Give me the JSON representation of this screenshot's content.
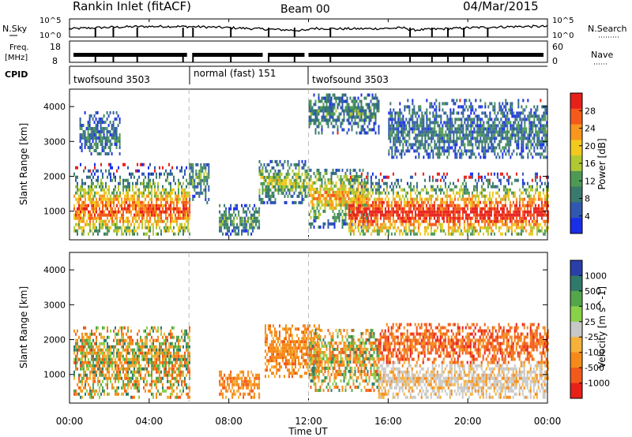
{
  "header": {
    "station": "Rankin Inlet (fitACF)",
    "beam": "Beam 00",
    "date": "04/Mar/2015"
  },
  "panels": {
    "nsky": {
      "label": "N.Sky",
      "right_label": "N.Search",
      "left_ticks": [
        "10^5",
        "10^0"
      ],
      "right_ticks": [
        "10^5",
        "10^0"
      ]
    },
    "freq": {
      "label_top": "Freq.",
      "label_unit": "[MHz]",
      "left_ticks": [
        "18",
        "8"
      ],
      "right_ticks": [
        "60",
        "0"
      ],
      "right_label": "Nave"
    },
    "cpid": {
      "label": "CPID",
      "segments": [
        "twofsound 3503",
        "normal (fast) 151",
        "twofsound 3503"
      ]
    },
    "power": {
      "ylabel": "Slant Range [km]",
      "colorbar_label": "Power [dB]",
      "colorbar_ticks": [
        "28",
        "24",
        "20",
        "16",
        "12",
        "8",
        "4"
      ],
      "colorbar_colors": [
        "#e8201a",
        "#f55a1a",
        "#f8961e",
        "#f2c91e",
        "#b2c832",
        "#4e9a55",
        "#3a7a6c",
        "#3058b0",
        "#1a2ee8"
      ]
    },
    "velocity": {
      "ylabel": "Slant Range [km]",
      "colorbar_label": "Velocity [m s^-1]",
      "colorbar_ticks": [
        "1000",
        "500",
        "100",
        "25",
        "-25",
        "-100",
        "-500",
        "-1000"
      ],
      "colorbar_colors": [
        "#2a3fa8",
        "#2f7a6a",
        "#53a64a",
        "#8ad14a",
        "#c8c8c8",
        "#f5b13a",
        "#f58a1a",
        "#f25a1a",
        "#e8201a"
      ]
    }
  },
  "xaxis": {
    "title": "Time UT",
    "ticks": [
      "00:00",
      "04:00",
      "08:00",
      "12:00",
      "16:00",
      "20:00",
      "00:00"
    ]
  },
  "chart_data": {
    "type": "heatmap",
    "x_range_hours": [
      0,
      24
    ],
    "y_range_km": [
      180,
      4500
    ],
    "y_ticks": [
      1000,
      2000,
      3000,
      4000
    ],
    "mode_changes_hours": [
      6,
      12
    ],
    "power_regions": [
      {
        "t0": 0.2,
        "t1": 6.0,
        "r0": 300,
        "r1": 2300,
        "peak_r": 1000,
        "strong": 0.7
      },
      {
        "t0": 0.5,
        "t1": 2.5,
        "r0": 2600,
        "r1": 3800,
        "peak_r": 3100,
        "strong": 0.1
      },
      {
        "t0": 6.0,
        "t1": 7.0,
        "r0": 1200,
        "r1": 2300,
        "peak_r": 1900,
        "strong": 0.2
      },
      {
        "t0": 7.5,
        "t1": 9.5,
        "r0": 300,
        "r1": 1200,
        "peak_r": 700,
        "strong": 0.2
      },
      {
        "t0": 9.5,
        "t1": 12.0,
        "r0": 1200,
        "r1": 2400,
        "peak_r": 1800,
        "strong": 0.35
      },
      {
        "t0": 12.0,
        "t1": 15.0,
        "r0": 500,
        "r1": 2200,
        "peak_r": 1400,
        "strong": 0.55
      },
      {
        "t0": 14.0,
        "t1": 24.0,
        "r0": 300,
        "r1": 2100,
        "peak_r": 900,
        "strong": 0.85
      },
      {
        "t0": 16.0,
        "t1": 24.0,
        "r0": 2500,
        "r1": 4200,
        "peak_r": 3200,
        "strong": 0.1
      },
      {
        "t0": 12.0,
        "t1": 15.5,
        "r0": 3200,
        "r1": 4300,
        "peak_r": 3800,
        "strong": 0.15
      }
    ],
    "velocity_regions": [
      {
        "t0": 0.2,
        "t1": 6.0,
        "r0": 300,
        "r1": 2300,
        "mix": "orange-green"
      },
      {
        "t0": 9.8,
        "t1": 12.5,
        "r0": 900,
        "r1": 2400,
        "mix": "orange"
      },
      {
        "t0": 12.0,
        "t1": 15.5,
        "r0": 500,
        "r1": 2300,
        "mix": "orange-green"
      },
      {
        "t0": 15.5,
        "t1": 24.0,
        "r0": 300,
        "r1": 1300,
        "mix": "gray-orange"
      },
      {
        "t0": 15.5,
        "t1": 24.0,
        "r0": 1300,
        "r1": 2400,
        "mix": "orange-red"
      },
      {
        "t0": 7.5,
        "t1": 9.5,
        "r0": 300,
        "r1": 1100,
        "mix": "orange"
      }
    ]
  }
}
